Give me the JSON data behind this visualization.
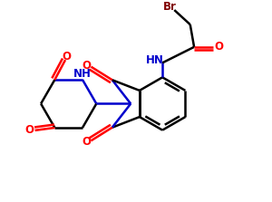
{
  "bg_color": "#ffffff",
  "bond_color": "#000000",
  "nitrogen_color": "#0000cc",
  "oxygen_color": "#ff0000",
  "bromine_color": "#800000",
  "line_width": 1.8,
  "figsize": [
    3.0,
    2.23
  ],
  "dpi": 100,
  "xlim": [
    0,
    10
  ],
  "ylim": [
    0,
    7.43
  ]
}
